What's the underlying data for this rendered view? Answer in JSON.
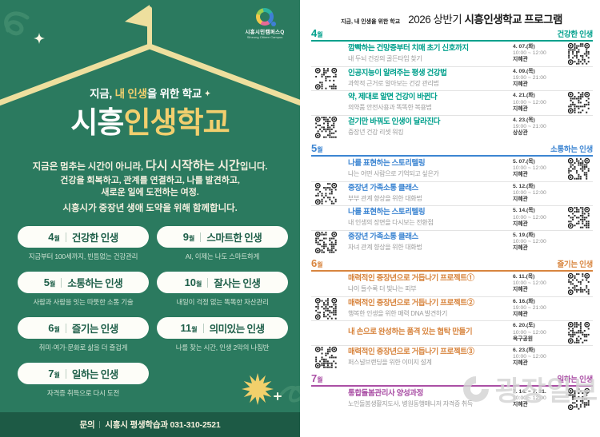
{
  "left_poster": {
    "logo": {
      "name": "시흥시민캠퍼스Q",
      "sub": "Siheung Citizen Campus"
    },
    "tagline": {
      "prefix": "지금, ",
      "highlight": "내 인생",
      "suffix": "을 위한 학교",
      "spark": "✦"
    },
    "title": {
      "white": "시흥",
      "yellow": "인생학교"
    },
    "intro": {
      "line1_normal": "지금은 멈추는 시간이 아니라, ",
      "line1_big": "다시 시작하는 시간",
      "line1_end": "입니다.",
      "line2": "건강을 회복하고, 관계를 연결하고, 나를 발견하고,",
      "line3": "새로운 일에 도전하는 여정.",
      "line4": "시흥시가 중장년 생애 도약을 위해 함께합니다."
    },
    "months": [
      {
        "num": "4",
        "wol": "월",
        "label": "건강한 인생",
        "desc": "지금부터 100세까지, 빈틈없는 건강관리"
      },
      {
        "num": "5",
        "wol": "월",
        "label": "소통하는 인생",
        "desc": "사람과 사람을 잇는 따뜻한 소통 기술"
      },
      {
        "num": "6",
        "wol": "월",
        "label": "즐기는 인생",
        "desc": "취미·여가·문화로 삶을 더 즐겁게"
      },
      {
        "num": "7",
        "wol": "월",
        "label": "일하는 인생",
        "desc": "자격증 취득으로 다시 도전"
      },
      {
        "num": "9",
        "wol": "월",
        "label": "스마트한 인생",
        "desc": "AI, 이제는 나도 스마트하게"
      },
      {
        "num": "10",
        "wol": "월",
        "label": "잘사는 인생",
        "desc": "내일이 걱정 없는 똑똑한 자산관리"
      },
      {
        "num": "11",
        "wol": "월",
        "label": "의미있는 인생",
        "desc": "나를 찾는 시간, 인생 2막의 나침반"
      }
    ],
    "footer": {
      "label": "문의",
      "text": "시흥시 평생학습과 031-310-2521"
    }
  },
  "right_panel": {
    "tagline": "지금, 내 인생을 위한 학교",
    "title_regular": "2026 상반기 ",
    "title_bold": "시흥인생학교 프로그램",
    "sections": [
      {
        "month": "4",
        "wol": "월",
        "category": "건강한 인생",
        "color": "#00a08c",
        "rows": [
          {
            "title": "깜빡하는 건망증부터 치매 초기 신호까지",
            "subtitle": "내 두뇌 건강의 골든타임 찾기",
            "date": "4. 07.(화)",
            "time": "10:00 ~ 12:00",
            "place": "지혜관",
            "qr": "right"
          },
          {
            "title": "인공지능이 알려주는 평생 건강법",
            "subtitle": "과학적 근거로 알아보는 건강 관리법",
            "date": "4. 09.(목)",
            "time": "19:00 ~ 21:00",
            "place": "지혜관",
            "qr": "left"
          },
          {
            "title": "약, 제대로 알면 건강이 바뀐다",
            "subtitle": "의약품 안전사용과 똑똑한 복용법",
            "date": "4. 21.(화)",
            "time": "10:00 ~ 12:00",
            "place": "지혜관",
            "qr": "right"
          },
          {
            "title": "걷기만 바꿔도 인생이 달라진다",
            "subtitle": "중장년 건강 리셋 워킹",
            "date": "4. 23.(목)",
            "time": "19:00 ~ 21:00",
            "place": "상상관",
            "qr": "left"
          }
        ]
      },
      {
        "month": "5",
        "wol": "월",
        "category": "소통하는 인생",
        "color": "#3c85d2",
        "rows": [
          {
            "title": "나를 표현하는 스토리텔링",
            "subtitle": "나는 어떤 사람으로 기억되고 싶은가",
            "date": "5. 07.(목)",
            "time": "10:00 ~ 12:00",
            "place": "지혜관",
            "qr": "right"
          },
          {
            "title": "중장년 가족소통 클래스",
            "subtitle": "부부 관계 향상을 위한 대화법",
            "date": "5. 12.(화)",
            "time": "10:00 ~ 12:00",
            "place": "지혜관",
            "qr": "left"
          },
          {
            "title": "나를 표현하는 스토리텔링",
            "subtitle": "내 인생의 장면을 다시보는 전환점",
            "date": "5. 14.(목)",
            "time": "10:00 ~ 12:00",
            "place": "지혜관",
            "qr": "right"
          },
          {
            "title": "중장년 가족소통 클래스",
            "subtitle": "자녀 관계 향상을 위한 대화법",
            "date": "5. 19.(화)",
            "time": "10:00 ~ 12:00",
            "place": "지혜관",
            "qr": "left"
          }
        ]
      },
      {
        "month": "6",
        "wol": "월",
        "category": "즐기는 인생",
        "color": "#d8853f",
        "rows": [
          {
            "title": "매력적인 중장년으로 거듭나기 프로젝트①",
            "subtitle": "나이 들수록 더 빛나는 피부",
            "date": "6. 11.(목)",
            "time": "10:00 ~ 12:00",
            "place": "지혜관",
            "qr": "right"
          },
          {
            "title": "매력적인 중장년으로 거듭나기 프로젝트②",
            "subtitle": "행복한 인생을 위한 매력 DNA 발견하기",
            "date": "6. 16.(화)",
            "time": "19:00 ~ 21:00",
            "place": "지혜관",
            "qr": "left"
          },
          {
            "title": "내 손으로 완성하는 품격 있는 협탁 만들기",
            "subtitle": "",
            "date": "6. 20.(토)",
            "time": "10:00 ~ 12:00",
            "place": "옥구공원",
            "qr": "right"
          },
          {
            "title": "매력적인 중장년으로 거듭나기 프로젝트③",
            "subtitle": "퍼스널브랜딩을 위한 이미지 설계",
            "date": "6. 23.(화)",
            "time": "10:00 ~ 12:00",
            "place": "지혜관",
            "qr": "left"
          }
        ]
      },
      {
        "month": "7",
        "wol": "월",
        "category": "일하는 인생",
        "color": "#aa4fa5",
        "rows": [
          {
            "title": "통합돌봄관리사 양성과정",
            "subtitle": "노인돌봄생활지도사, 병원동행매니저 자격증 취득",
            "date": "7. 14. ~ 7. 31.",
            "time": "10:00 ~ 12:00",
            "place": "지혜관",
            "qr": "right"
          }
        ]
      }
    ]
  },
  "watermark": {
    "text": "광장일보"
  },
  "theme": {
    "poster_green": "#2b7a5f",
    "footer_green": "#1d5a45",
    "cream_yellow": "#f2cf6e",
    "hanger_cream": "#eedf9e",
    "pill_text_green": "#1e5f49"
  }
}
